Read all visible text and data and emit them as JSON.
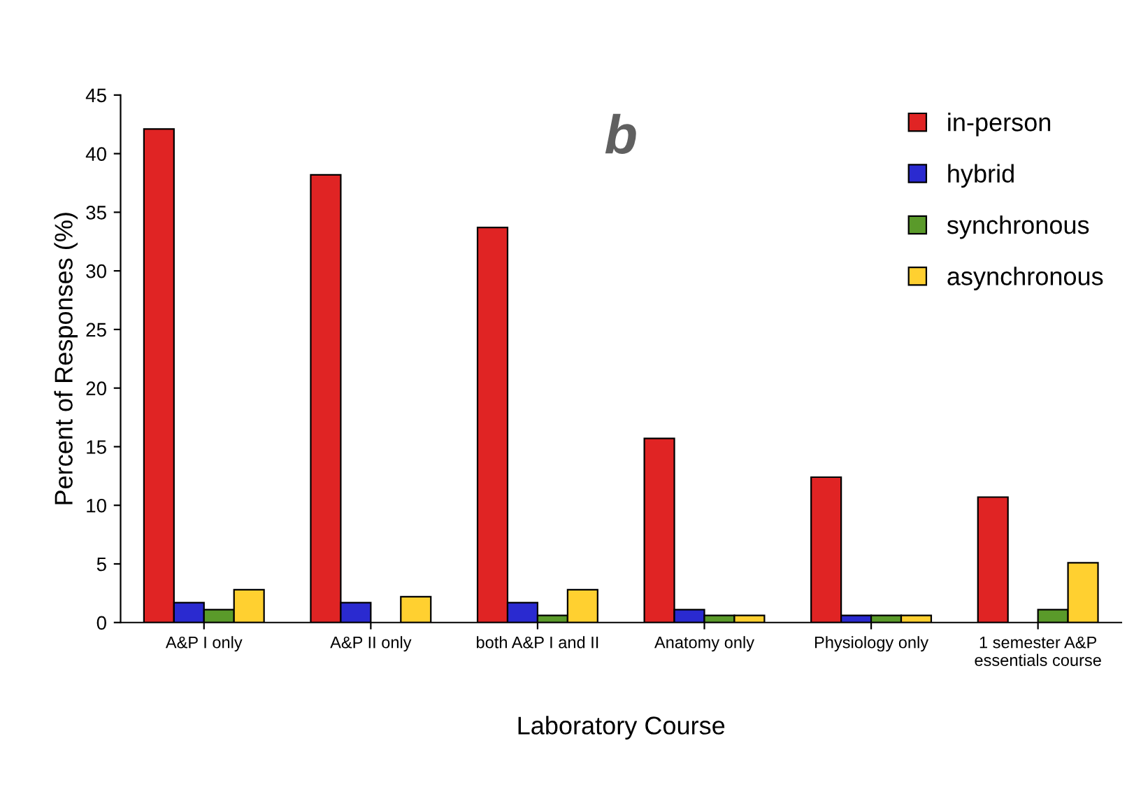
{
  "chart_data": {
    "type": "bar",
    "title": "b",
    "xlabel": "Laboratory Course",
    "ylabel": "Percent of Responses (%)",
    "categories": [
      "A&P I only",
      "A&P II only",
      "both A&P I and II",
      "Anatomy only",
      "Physiology only",
      "1 semester A&P\nessentials course"
    ],
    "series": [
      {
        "name": "in-person",
        "color": "#e02424",
        "values": [
          42.1,
          38.2,
          33.7,
          15.7,
          12.4,
          10.7
        ]
      },
      {
        "name": "hybrid",
        "color": "#2a2ad0",
        "values": [
          1.7,
          1.7,
          1.7,
          1.1,
          0.6,
          null
        ]
      },
      {
        "name": "synchronous",
        "color": "#5a9a2a",
        "values": [
          1.1,
          null,
          0.6,
          0.6,
          0.6,
          1.1
        ]
      },
      {
        "name": "asynchronous",
        "color": "#ffd030",
        "values": [
          2.8,
          2.2,
          2.8,
          0.6,
          0.6,
          5.1
        ]
      }
    ],
    "ylim": [
      0,
      45
    ],
    "yticks": [
      0,
      5,
      10,
      15,
      20,
      25,
      30,
      35,
      40,
      45
    ],
    "grid": false,
    "legend": "top right"
  }
}
